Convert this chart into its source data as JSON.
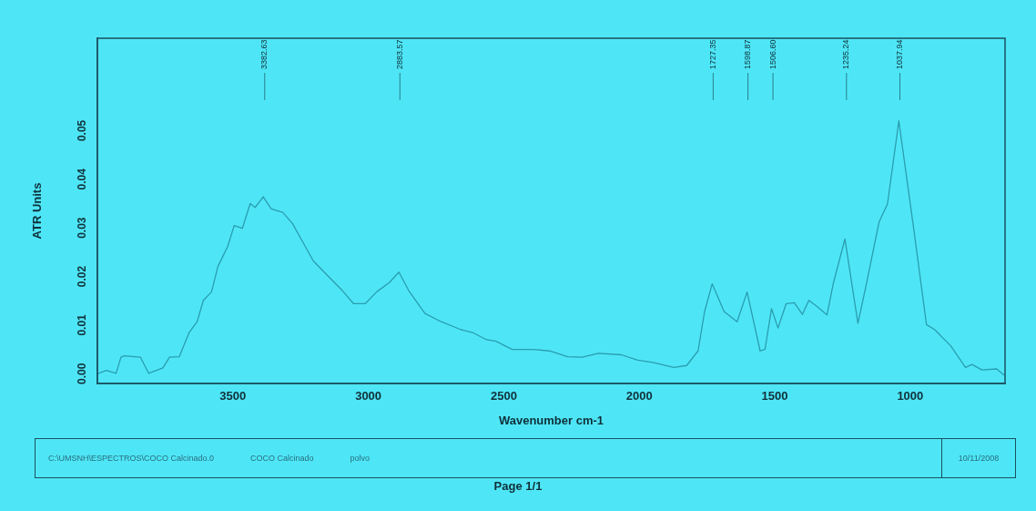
{
  "chart_data": {
    "type": "line",
    "xlabel": "Wavenumber cm-1",
    "ylabel": "ATR Units",
    "xlim": [
      4000,
      650
    ],
    "xticks": [
      3500,
      3000,
      2500,
      2000,
      1500,
      1000
    ],
    "ylim": [
      -0.002,
      0.069
    ],
    "yticks": [
      {
        "value": 0,
        "label": "0.00"
      },
      0.01,
      0.02,
      0.03,
      0.04,
      0.05
    ],
    "grid": false,
    "legend": false,
    "marker": "none",
    "line_style": "solid",
    "series": [
      {
        "color": "#2a9db0",
        "x": [
          4000,
          3967,
          3931,
          3913,
          3901,
          3841,
          3811,
          3758,
          3734,
          3698,
          3662,
          3632,
          3609,
          3579,
          3555,
          3519,
          3495,
          3465,
          3436,
          3418,
          3388,
          3358,
          3316,
          3280,
          3233,
          3203,
          3149,
          3101,
          3054,
          3012,
          2970,
          2922,
          2887,
          2851,
          2791,
          2731,
          2660,
          2612,
          2564,
          2529,
          2469,
          2392,
          2331,
          2265,
          2211,
          2151,
          2066,
          2006,
          1946,
          1873,
          1825,
          1783,
          1759,
          1731,
          1687,
          1639,
          1602,
          1554,
          1536,
          1512,
          1488,
          1458,
          1428,
          1398,
          1374,
          1343,
          1307,
          1283,
          1241,
          1193,
          1163,
          1115,
          1084,
          1042,
          988,
          940,
          910,
          850,
          796,
          772,
          735,
          681,
          653
        ],
        "values": [
          0.0,
          0.0007,
          0.0001,
          0.0034,
          0.0037,
          0.0034,
          0.0001,
          0.0012,
          0.0034,
          0.0035,
          0.0084,
          0.0107,
          0.0151,
          0.0168,
          0.0221,
          0.0262,
          0.0305,
          0.0299,
          0.035,
          0.0342,
          0.0364,
          0.0339,
          0.0332,
          0.0309,
          0.0262,
          0.0232,
          0.0201,
          0.0174,
          0.0144,
          0.0144,
          0.0168,
          0.0188,
          0.0209,
          0.0171,
          0.0124,
          0.0107,
          0.0091,
          0.0084,
          0.007,
          0.0067,
          0.005,
          0.005,
          0.0047,
          0.0035,
          0.0034,
          0.0042,
          0.0039,
          0.0028,
          0.0023,
          0.0013,
          0.0017,
          0.0047,
          0.0128,
          0.0185,
          0.0128,
          0.0107,
          0.0168,
          0.0047,
          0.005,
          0.0134,
          0.0094,
          0.0144,
          0.0146,
          0.0122,
          0.0151,
          0.0138,
          0.0121,
          0.0188,
          0.0277,
          0.0104,
          0.0181,
          0.0312,
          0.0349,
          0.052,
          0.0302,
          0.0101,
          0.0091,
          0.0057,
          0.0013,
          0.0019,
          0.0008,
          0.001,
          -0.0003
        ]
      }
    ],
    "ref_lines": [
      {
        "axis": "x",
        "value": 3382.63,
        "label": "3382.63"
      },
      {
        "axis": "x",
        "value": 2883.57,
        "label": "2883.57"
      },
      {
        "axis": "x",
        "value": 1727.35,
        "label": "1727.35"
      },
      {
        "axis": "x",
        "value": 1598.87,
        "label": "1598.87"
      },
      {
        "axis": "x",
        "value": 1506.6,
        "label": "1506.60"
      },
      {
        "axis": "x",
        "value": 1235.24,
        "label": "1235.24"
      },
      {
        "axis": "x",
        "value": 1037.94,
        "label": "1037.94"
      }
    ],
    "annotations": [
      "C:\\UMSNH\\ESPECTROS\\COCO Calcinado.0",
      "COCO Calcinado",
      "polvo",
      "10/11/2008",
      "Page 1/1"
    ]
  }
}
